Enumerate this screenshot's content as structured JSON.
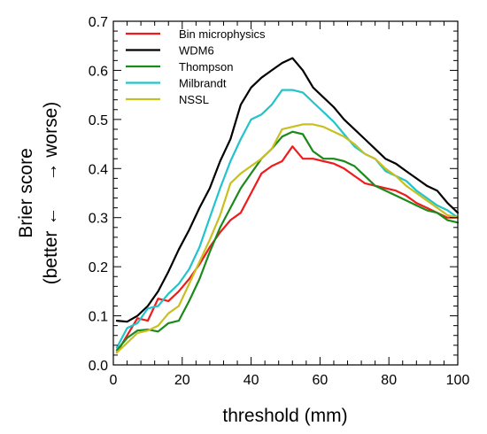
{
  "chart_data": {
    "type": "line",
    "xlabel": "threshold (mm)",
    "ylabel_line1": "Brier score",
    "ylabel_line2": "(better ←     → worse)",
    "xlim": [
      0,
      100
    ],
    "ylim": [
      0,
      0.7
    ],
    "xticks": [
      0,
      20,
      40,
      60,
      80,
      100
    ],
    "yticks": [
      0.0,
      0.1,
      0.2,
      0.3,
      0.4,
      0.5,
      0.6,
      0.7
    ],
    "ytick_labels": [
      "0.0",
      "0.1",
      "0.2",
      "0.3",
      "0.4",
      "0.5",
      "0.6",
      "0.7"
    ],
    "grid": false,
    "legend_position": "top-left",
    "x": [
      1,
      4,
      7,
      10,
      13,
      16,
      19,
      22,
      25,
      28,
      31,
      34,
      37,
      40,
      43,
      46,
      49,
      52,
      55,
      58,
      61,
      64,
      67,
      70,
      73,
      76,
      79,
      82,
      85,
      88,
      91,
      94,
      97,
      100
    ],
    "series": [
      {
        "name": "Bin microphysics",
        "color": "#ee1c1c",
        "values": [
          0.025,
          0.06,
          0.095,
          0.09,
          0.135,
          0.13,
          0.15,
          0.175,
          0.205,
          0.24,
          0.27,
          0.295,
          0.31,
          0.35,
          0.39,
          0.405,
          0.415,
          0.445,
          0.42,
          0.42,
          0.415,
          0.41,
          0.4,
          0.385,
          0.37,
          0.365,
          0.36,
          0.355,
          0.345,
          0.33,
          0.32,
          0.31,
          0.3,
          0.3
        ]
      },
      {
        "name": "WDM6",
        "color": "#000000",
        "values": [
          0.09,
          0.088,
          0.1,
          0.12,
          0.15,
          0.19,
          0.235,
          0.275,
          0.32,
          0.36,
          0.415,
          0.46,
          0.53,
          0.565,
          0.585,
          0.6,
          0.615,
          0.625,
          0.6,
          0.565,
          0.545,
          0.525,
          0.5,
          0.48,
          0.46,
          0.44,
          0.42,
          0.41,
          0.395,
          0.38,
          0.365,
          0.355,
          0.33,
          0.31
        ]
      },
      {
        "name": "Thompson",
        "color": "#1a8a1a",
        "values": [
          0.03,
          0.055,
          0.07,
          0.072,
          0.068,
          0.085,
          0.09,
          0.13,
          0.175,
          0.23,
          0.28,
          0.32,
          0.36,
          0.39,
          0.42,
          0.44,
          0.465,
          0.475,
          0.47,
          0.435,
          0.42,
          0.42,
          0.415,
          0.405,
          0.385,
          0.365,
          0.355,
          0.345,
          0.335,
          0.325,
          0.315,
          0.31,
          0.295,
          0.29
        ]
      },
      {
        "name": "Milbrandt",
        "color": "#22c3cc",
        "values": [
          0.035,
          0.075,
          0.085,
          0.115,
          0.12,
          0.145,
          0.165,
          0.195,
          0.24,
          0.3,
          0.36,
          0.415,
          0.46,
          0.5,
          0.51,
          0.53,
          0.56,
          0.56,
          0.555,
          0.535,
          0.515,
          0.495,
          0.47,
          0.445,
          0.43,
          0.42,
          0.395,
          0.385,
          0.375,
          0.355,
          0.34,
          0.325,
          0.315,
          0.3
        ]
      },
      {
        "name": "NSSL",
        "color": "#c8c020",
        "values": [
          0.025,
          0.045,
          0.065,
          0.07,
          0.08,
          0.105,
          0.12,
          0.165,
          0.21,
          0.255,
          0.305,
          0.37,
          0.39,
          0.405,
          0.42,
          0.44,
          0.48,
          0.485,
          0.49,
          0.49,
          0.485,
          0.475,
          0.465,
          0.45,
          0.43,
          0.42,
          0.4,
          0.385,
          0.365,
          0.35,
          0.335,
          0.32,
          0.305,
          0.3
        ]
      }
    ]
  }
}
